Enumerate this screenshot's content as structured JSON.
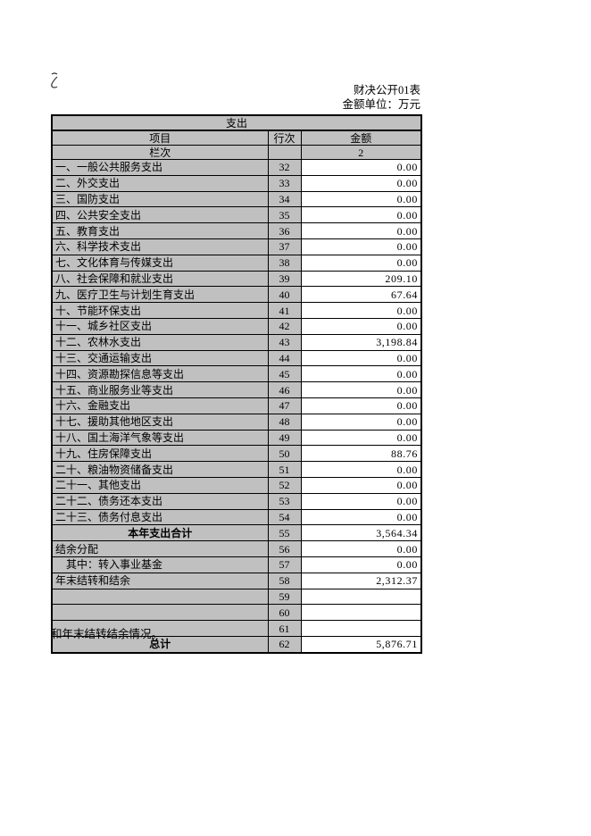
{
  "page": {
    "doc_label": "财决公开01表",
    "unit_label": "金额单位：万元",
    "footer_note": "和年末结转结余情况。"
  },
  "colors": {
    "header_fill": "#c0c0c0",
    "cell_fill": "#ffffff",
    "border": "#000000"
  },
  "table": {
    "title": "支出",
    "headers": {
      "item": "项目",
      "row_no": "行次",
      "amount": "金额"
    },
    "subheader": {
      "item": "栏次",
      "row_no": "",
      "amount": "2"
    },
    "rows": [
      {
        "item": "一、一般公共服务支出",
        "row_no": "32",
        "amount": "0.00",
        "style": ""
      },
      {
        "item": "二、外交支出",
        "row_no": "33",
        "amount": "0.00",
        "style": ""
      },
      {
        "item": "三、国防支出",
        "row_no": "34",
        "amount": "0.00",
        "style": ""
      },
      {
        "item": "四、公共安全支出",
        "row_no": "35",
        "amount": "0.00",
        "style": ""
      },
      {
        "item": "五、教育支出",
        "row_no": "36",
        "amount": "0.00",
        "style": ""
      },
      {
        "item": "六、科学技术支出",
        "row_no": "37",
        "amount": "0.00",
        "style": ""
      },
      {
        "item": "七、文化体育与传媒支出",
        "row_no": "38",
        "amount": "0.00",
        "style": ""
      },
      {
        "item": "八、社会保障和就业支出",
        "row_no": "39",
        "amount": "209.10",
        "style": ""
      },
      {
        "item": "九、医疗卫生与计划生育支出",
        "row_no": "40",
        "amount": "67.64",
        "style": ""
      },
      {
        "item": "十、节能环保支出",
        "row_no": "41",
        "amount": "0.00",
        "style": ""
      },
      {
        "item": "十一、城乡社区支出",
        "row_no": "42",
        "amount": "0.00",
        "style": ""
      },
      {
        "item": "十二、农林水支出",
        "row_no": "43",
        "amount": "3,198.84",
        "style": ""
      },
      {
        "item": "十三、交通运输支出",
        "row_no": "44",
        "amount": "0.00",
        "style": ""
      },
      {
        "item": "十四、资源勘探信息等支出",
        "row_no": "45",
        "amount": "0.00",
        "style": ""
      },
      {
        "item": "十五、商业服务业等支出",
        "row_no": "46",
        "amount": "0.00",
        "style": ""
      },
      {
        "item": "十六、金融支出",
        "row_no": "47",
        "amount": "0.00",
        "style": ""
      },
      {
        "item": "十七、援助其他地区支出",
        "row_no": "48",
        "amount": "0.00",
        "style": ""
      },
      {
        "item": "十八、国土海洋气象等支出",
        "row_no": "49",
        "amount": "0.00",
        "style": ""
      },
      {
        "item": "十九、住房保障支出",
        "row_no": "50",
        "amount": "88.76",
        "style": ""
      },
      {
        "item": "二十、粮油物资储备支出",
        "row_no": "51",
        "amount": "0.00",
        "style": ""
      },
      {
        "item": "二十一、其他支出",
        "row_no": "52",
        "amount": "0.00",
        "style": ""
      },
      {
        "item": "二十二、债务还本支出",
        "row_no": "53",
        "amount": "0.00",
        "style": ""
      },
      {
        "item": "二十三、债务付息支出",
        "row_no": "54",
        "amount": "0.00",
        "style": ""
      },
      {
        "item": "本年支出合计",
        "row_no": "55",
        "amount": "3,564.34",
        "style": "total"
      },
      {
        "item": "结余分配",
        "row_no": "56",
        "amount": "0.00",
        "style": ""
      },
      {
        "item": "其中：转入事业基金",
        "row_no": "57",
        "amount": "0.00",
        "style": "indent"
      },
      {
        "item": "年末结转和结余",
        "row_no": "58",
        "amount": "2,312.37",
        "style": ""
      },
      {
        "item": "",
        "row_no": "59",
        "amount": "",
        "style": ""
      },
      {
        "item": "",
        "row_no": "60",
        "amount": "",
        "style": ""
      },
      {
        "item": "",
        "row_no": "61",
        "amount": "",
        "style": ""
      },
      {
        "item": "总计",
        "row_no": "62",
        "amount": "5,876.71",
        "style": "total"
      }
    ]
  }
}
